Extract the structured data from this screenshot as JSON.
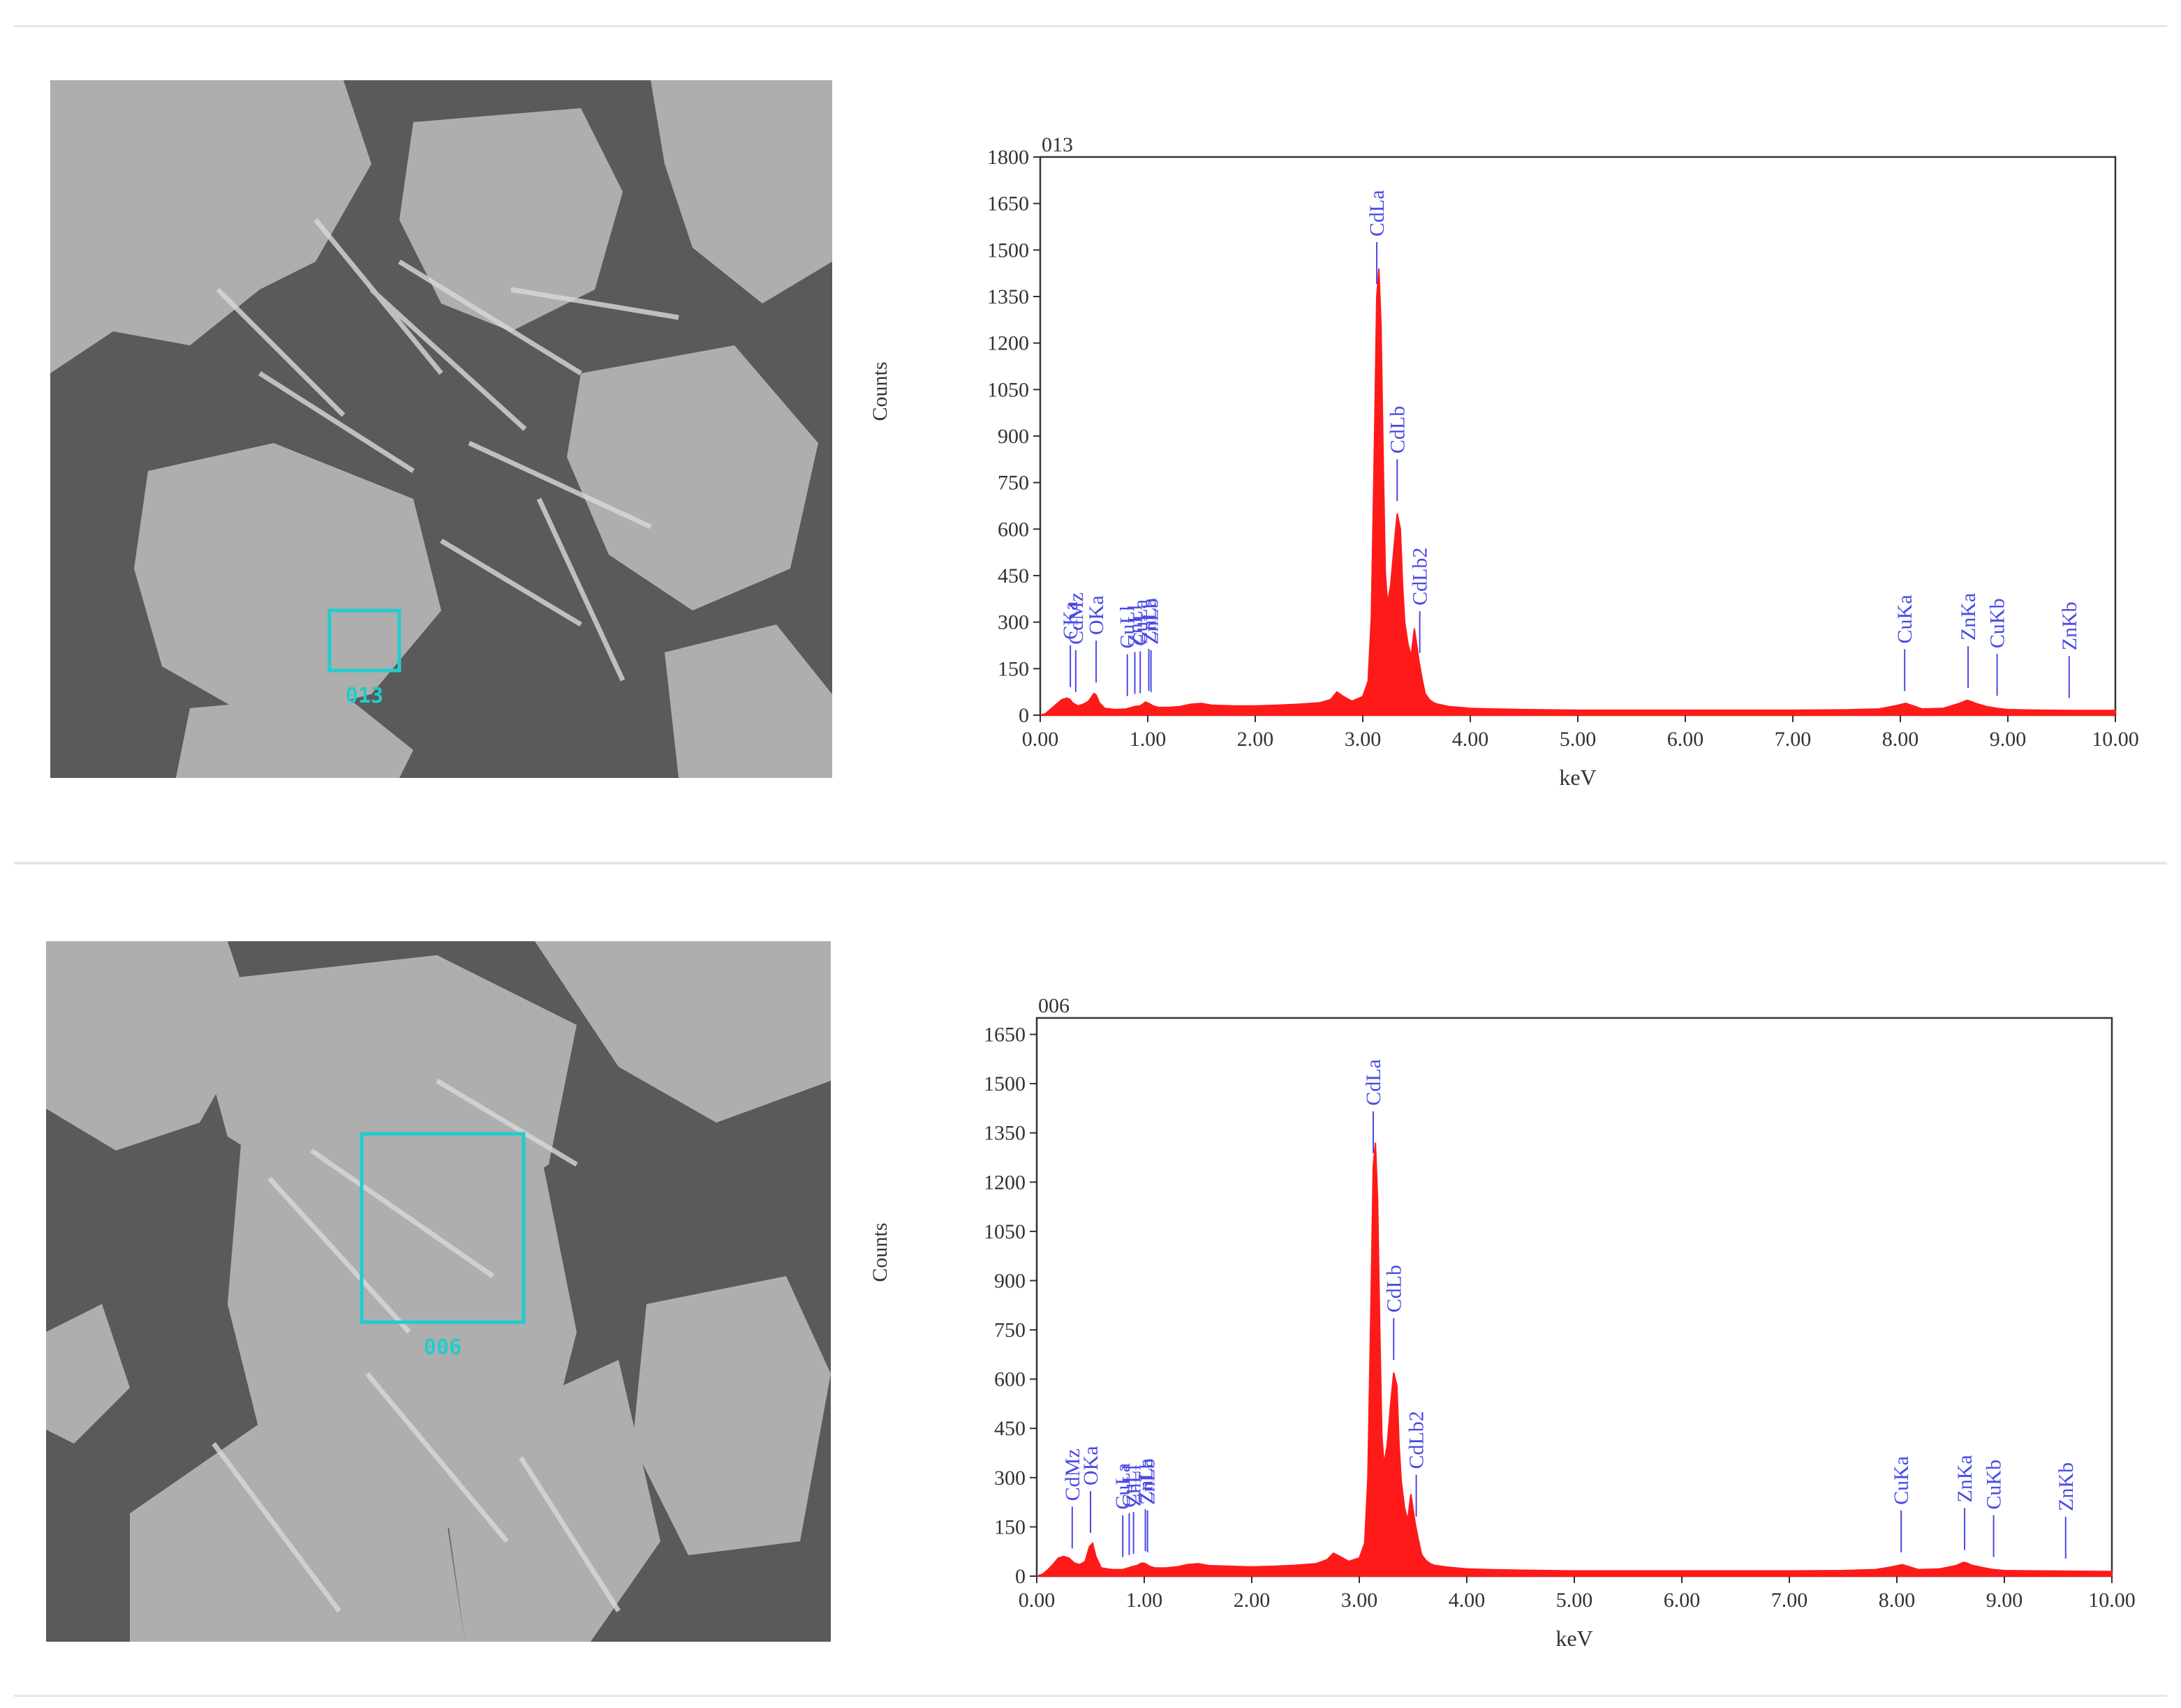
{
  "panels": [
    {
      "sem_image": {
        "roi_label": "013"
      },
      "chart_data": {
        "type": "area",
        "title": "013",
        "xlabel": "keV",
        "ylabel": "Counts",
        "xlim": [
          0,
          10
        ],
        "ylim": [
          0,
          1800
        ],
        "xticks": [
          "0.00",
          "1.00",
          "2.00",
          "3.00",
          "4.00",
          "5.00",
          "6.00",
          "7.00",
          "8.00",
          "9.00",
          "10.00"
        ],
        "yticks": [
          "0",
          "150",
          "300",
          "450",
          "600",
          "750",
          "900",
          "1050",
          "1200",
          "1350",
          "1500",
          "1650",
          "1800"
        ],
        "spectrum_color": "#ff1a1a",
        "label_color": "#4a4ae6",
        "series": [
          {
            "x": [
              0.0,
              0.05,
              0.1,
              0.15,
              0.2,
              0.25,
              0.28,
              0.3,
              0.35,
              0.4,
              0.45,
              0.5,
              0.52,
              0.55,
              0.6,
              0.7,
              0.8,
              0.88,
              0.93,
              0.98,
              1.01,
              1.05,
              1.1,
              1.2,
              1.3,
              1.4,
              1.5,
              1.6,
              1.8,
              2.0,
              2.2,
              2.4,
              2.6,
              2.7,
              2.76,
              2.82,
              2.9,
              3.0,
              3.05,
              3.08,
              3.11,
              3.13,
              3.15,
              3.17,
              3.19,
              3.21,
              3.23,
              3.26,
              3.29,
              3.32,
              3.35,
              3.37,
              3.39,
              3.42,
              3.45,
              3.48,
              3.52,
              3.55,
              3.58,
              3.62,
              3.66,
              3.7,
              3.8,
              3.9,
              4.0,
              4.2,
              4.5,
              5.0,
              5.5,
              6.0,
              6.5,
              7.0,
              7.5,
              7.8,
              7.95,
              8.05,
              8.12,
              8.2,
              8.4,
              8.55,
              8.62,
              8.65,
              8.7,
              8.8,
              8.9,
              9.0,
              9.3,
              9.6,
              10.0
            ],
            "y": [
              0,
              5,
              20,
              35,
              50,
              55,
              50,
              40,
              30,
              35,
              45,
              70,
              65,
              40,
              22,
              18,
              20,
              28,
              30,
              42,
              38,
              30,
              25,
              25,
              28,
              35,
              38,
              32,
              30,
              30,
              32,
              35,
              40,
              50,
              75,
              60,
              45,
              60,
              110,
              320,
              900,
              1350,
              1440,
              1250,
              820,
              460,
              360,
              420,
              540,
              650,
              600,
              420,
              300,
              230,
              190,
              280,
              180,
              120,
              70,
              50,
              40,
              35,
              28,
              25,
              22,
              20,
              18,
              16,
              16,
              16,
              16,
              16,
              17,
              20,
              30,
              38,
              30,
              20,
              22,
              38,
              48,
              45,
              38,
              28,
              22,
              18,
              16,
              15,
              15
            ]
          }
        ],
        "peak_labels": [
          {
            "text": "CKa",
            "x": 0.28
          },
          {
            "text": "CdMz",
            "x": 0.33
          },
          {
            "text": "OKa",
            "x": 0.52
          },
          {
            "text": "CuLl",
            "x": 0.81
          },
          {
            "text": "CuLa",
            "x": 0.93
          },
          {
            "text": "ZnLl",
            "x": 0.88
          },
          {
            "text": "ZnLa",
            "x": 1.01
          },
          {
            "text": "ZnLb",
            "x": 1.03
          },
          {
            "text": "CdLa",
            "x": 3.13
          },
          {
            "text": "CdLb",
            "x": 3.32
          },
          {
            "text": "CdLb2",
            "x": 3.53
          },
          {
            "text": "CuKa",
            "x": 8.04
          },
          {
            "text": "ZnKa",
            "x": 8.63
          },
          {
            "text": "CuKb",
            "x": 8.9
          },
          {
            "text": "ZnKb",
            "x": 9.57
          }
        ]
      }
    },
    {
      "sem_image": {
        "roi_label": "006"
      },
      "chart_data": {
        "type": "area",
        "title": "006",
        "xlabel": "keV",
        "ylabel": "Counts",
        "xlim": [
          0,
          10
        ],
        "ylim": [
          0,
          1700
        ],
        "xticks": [
          "0.00",
          "1.00",
          "2.00",
          "3.00",
          "4.00",
          "5.00",
          "6.00",
          "7.00",
          "8.00",
          "9.00",
          "10.00"
        ],
        "yticks": [
          "0",
          "150",
          "300",
          "450",
          "600",
          "750",
          "900",
          "1050",
          "1200",
          "1350",
          "1500",
          "1650"
        ],
        "spectrum_color": "#ff1a1a",
        "label_color": "#4a4ae6",
        "series": [
          {
            "x": [
              0.0,
              0.05,
              0.1,
              0.15,
              0.2,
              0.25,
              0.3,
              0.35,
              0.4,
              0.45,
              0.49,
              0.52,
              0.55,
              0.6,
              0.7,
              0.8,
              0.88,
              0.93,
              0.98,
              1.01,
              1.05,
              1.1,
              1.2,
              1.3,
              1.4,
              1.5,
              1.6,
              1.8,
              2.0,
              2.2,
              2.4,
              2.6,
              2.7,
              2.76,
              2.82,
              2.9,
              3.0,
              3.05,
              3.08,
              3.11,
              3.13,
              3.15,
              3.17,
              3.19,
              3.21,
              3.23,
              3.26,
              3.29,
              3.32,
              3.35,
              3.37,
              3.39,
              3.42,
              3.45,
              3.48,
              3.52,
              3.55,
              3.58,
              3.62,
              3.66,
              3.7,
              3.8,
              3.9,
              4.0,
              4.2,
              4.5,
              5.0,
              5.5,
              6.0,
              6.5,
              7.0,
              7.5,
              7.8,
              7.95,
              8.05,
              8.12,
              8.2,
              8.4,
              8.55,
              8.62,
              8.65,
              8.7,
              8.8,
              8.9,
              9.0,
              9.3,
              9.6,
              10.0
            ],
            "y": [
              0,
              5,
              18,
              35,
              55,
              60,
              55,
              40,
              35,
              45,
              90,
              100,
              60,
              25,
              20,
              20,
              28,
              32,
              40,
              38,
              30,
              25,
              25,
              28,
              35,
              38,
              32,
              30,
              28,
              30,
              33,
              38,
              50,
              70,
              60,
              45,
              55,
              100,
              300,
              850,
              1250,
              1320,
              1150,
              760,
              430,
              340,
              400,
              520,
              620,
              580,
              400,
              290,
              210,
              170,
              250,
              160,
              110,
              65,
              48,
              38,
              33,
              28,
              25,
              22,
              20,
              18,
              16,
              16,
              16,
              16,
              16,
              17,
              20,
              28,
              35,
              28,
              20,
              22,
              32,
              42,
              40,
              33,
              26,
              20,
              17,
              16,
              15,
              14
            ]
          }
        ],
        "peak_labels": [
          {
            "text": "CdMz",
            "x": 0.33
          },
          {
            "text": "OKa",
            "x": 0.5
          },
          {
            "text": "CuLa",
            "x": 0.8
          },
          {
            "text": "CuLl",
            "x": 0.86
          },
          {
            "text": "ZnLl",
            "x": 0.9
          },
          {
            "text": "ZnLa",
            "x": 1.01
          },
          {
            "text": "ZnLb",
            "x": 1.03
          },
          {
            "text": "CdLa",
            "x": 3.13
          },
          {
            "text": "CdLb",
            "x": 3.32
          },
          {
            "text": "CdLb2",
            "x": 3.53
          },
          {
            "text": "CuKa",
            "x": 8.04
          },
          {
            "text": "ZnKa",
            "x": 8.63
          },
          {
            "text": "CuKb",
            "x": 8.9
          },
          {
            "text": "ZnKb",
            "x": 9.57
          }
        ]
      }
    }
  ]
}
